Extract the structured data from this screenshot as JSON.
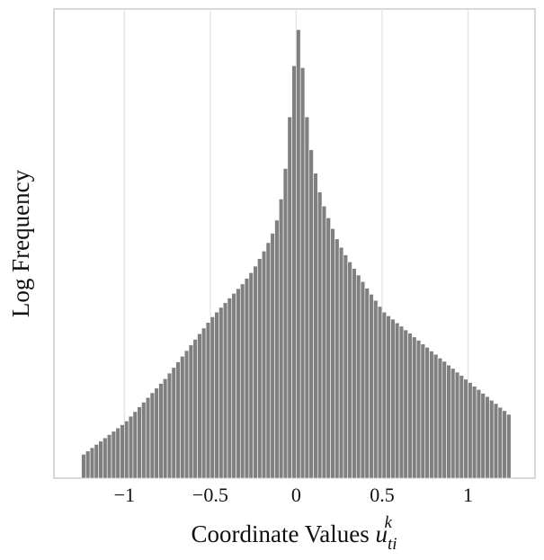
{
  "chart_data": {
    "type": "histogram",
    "x_label": "Coordinate Values",
    "x_label_symbol": "u",
    "x_label_subscript": "ti",
    "x_label_superscript": "k",
    "y_label": "Log Frequency",
    "color": "#808080",
    "bins": [
      -1.25,
      -1.225,
      -1.2,
      -1.175,
      -1.15,
      -1.125,
      -1.1,
      -1.075,
      -1.05,
      -1.025,
      -1,
      -0.975,
      -0.95,
      -0.925,
      -0.9,
      -0.875,
      -0.85,
      -0.825,
      -0.8,
      -0.775,
      -0.75,
      -0.725,
      -0.7,
      -0.675,
      -0.65,
      -0.625,
      -0.6,
      -0.575,
      -0.55,
      -0.525,
      -0.5,
      -0.475,
      -0.45,
      -0.425,
      -0.4,
      -0.375,
      -0.35,
      -0.325,
      -0.3,
      -0.275,
      -0.25,
      -0.225,
      -0.2,
      -0.175,
      -0.15,
      -0.125,
      -0.1,
      -0.075,
      -0.05,
      -0.025,
      0,
      0.025,
      0.05,
      0.075,
      0.1,
      0.125,
      0.15,
      0.175,
      0.2,
      0.225,
      0.25,
      0.275,
      0.3,
      0.325,
      0.35,
      0.375,
      0.4,
      0.425,
      0.45,
      0.475,
      0.5,
      0.525,
      0.55,
      0.575,
      0.6,
      0.625,
      0.65,
      0.675,
      0.7,
      0.725,
      0.75,
      0.775,
      0.8,
      0.825,
      0.85,
      0.875,
      0.9,
      0.925,
      0.95,
      0.975,
      1,
      1.025,
      1.05,
      1.075,
      1.1,
      1.125,
      1.15,
      1.175,
      1.2,
      1.225,
      1.25
    ],
    "values": [
      5.1,
      5.8,
      6.5,
      7.2,
      7.9,
      8.6,
      9.3,
      10.0,
      10.7,
      11.4,
      12.2,
      13.2,
      14.2,
      15.2,
      16.2,
      17.2,
      18.2,
      19.2,
      20.2,
      21.2,
      22.4,
      23.6,
      24.8,
      26.0,
      27.2,
      28.4,
      29.6,
      30.8,
      32.0,
      33.2,
      34.4,
      35.4,
      36.4,
      37.4,
      38.4,
      39.4,
      40.4,
      41.4,
      42.6,
      43.8,
      45.2,
      46.8,
      48.4,
      50.2,
      52.2,
      55,
      59.5,
      66,
      77,
      87.9,
      95.6,
      87.5,
      77,
      70,
      65,
      61,
      58,
      55.5,
      53.2,
      51,
      49.2,
      47.6,
      46.1,
      44.7,
      43.3,
      41.9,
      40.5,
      39.2,
      37.9,
      36.6,
      35.4,
      34.6,
      33.9,
      33.1,
      32.4,
      31.6,
      30.9,
      30.1,
      29.4,
      28.6,
      27.9,
      27.1,
      26.4,
      25.6,
      24.9,
      24.1,
      23.4,
      22.6,
      21.9,
      21.1,
      20.4,
      19.6,
      18.9,
      18.1,
      17.4,
      16.6,
      15.9,
      15.1,
      14.4,
      13.6
    ],
    "xlim": [
      -1.41,
      1.39
    ],
    "ylim": [
      0,
      100
    ],
    "xticks": [
      {
        "value": -1,
        "label": "−1"
      },
      {
        "value": -0.5,
        "label": "−0.5"
      },
      0,
      0.5,
      1
    ],
    "grid": true
  }
}
